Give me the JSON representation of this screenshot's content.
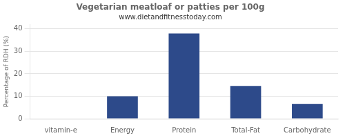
{
  "chart_data": {
    "type": "bar",
    "title": "Vegetarian meatloaf or patties per 100g",
    "subtitle": "www.dietandfitnesstoday.com",
    "categories": [
      "vitamin-e",
      "Energy",
      "Protein",
      "Total-Fat",
      "Carbohydrate"
    ],
    "values": [
      0,
      10,
      38,
      14.5,
      6.5
    ],
    "color": "#2d4a8a",
    "ylabel": "Percentage of RDH (%)",
    "ylim": [
      0,
      42
    ],
    "yticks": [
      0,
      10,
      20,
      30,
      40
    ],
    "grid": true
  }
}
